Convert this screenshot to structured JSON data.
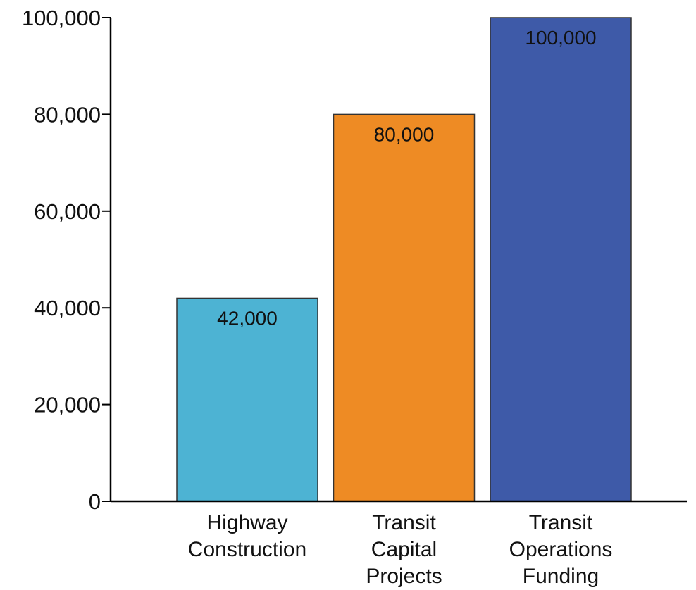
{
  "chart_data": {
    "type": "bar",
    "categories": [
      [
        "Highway",
        "Construction"
      ],
      [
        "Transit",
        "Capital",
        "Projects"
      ],
      [
        "Transit",
        "Operations",
        "Funding"
      ]
    ],
    "values": [
      42000,
      80000,
      100000
    ],
    "data_labels": [
      "42,000",
      "80,000",
      "100,000"
    ],
    "colors": [
      "#4db3d3",
      "#ee8b24",
      "#3e5aa8"
    ],
    "ylim": [
      0,
      100000
    ],
    "yticks": [
      0,
      20000,
      40000,
      60000,
      80000,
      100000
    ],
    "ytick_labels": [
      "0",
      "20,000",
      "40,000",
      "60,000",
      "80,000",
      "100,000"
    ],
    "grid": false,
    "legend": false
  }
}
